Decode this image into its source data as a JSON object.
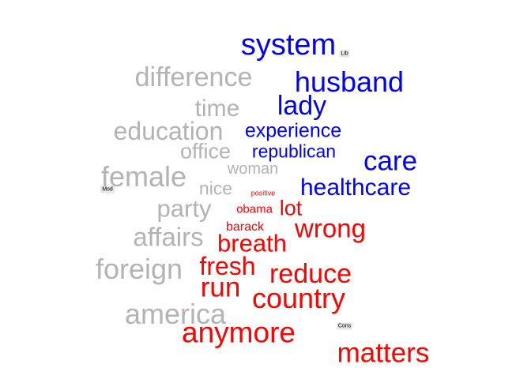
{
  "labels": {
    "mod": "Mod",
    "lib": "Lib",
    "cons": "Cons"
  },
  "words": {
    "system": "system",
    "husband": "husband",
    "lady": "lady",
    "experience": "experience",
    "republican": "republican",
    "care": "care",
    "healthcare": "healthcare",
    "difference": "difference",
    "time": "time",
    "education": "education",
    "office": "office",
    "woman": "woman",
    "female": "female",
    "nice": "nice",
    "party": "party",
    "affairs": "affairs",
    "foreign": "foreign",
    "america": "america",
    "positive": "positive",
    "obama": "obama",
    "lot": "lot",
    "barack": "barack",
    "wrong": "wrong",
    "breath": "breath",
    "fresh": "fresh",
    "reduce": "reduce",
    "run": "run",
    "country": "country",
    "anymore": "anymore",
    "matters": "matters"
  },
  "colors": {
    "moderate": "#b3b3b3",
    "liberal": "#0000ff",
    "conservative": "#ff0000"
  }
}
